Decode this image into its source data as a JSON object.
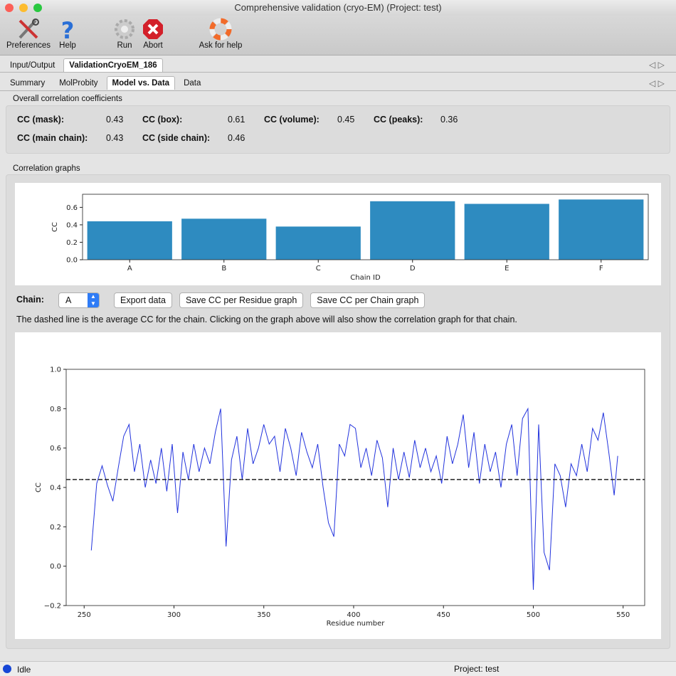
{
  "window": {
    "title": "Comprehensive validation (cryo-EM) (Project: test)"
  },
  "toolbar": [
    "Preferences",
    "Help",
    "Run",
    "Abort",
    "Ask for help"
  ],
  "main_tabs": {
    "items": [
      "Input/Output",
      "ValidationCryoEM_186"
    ],
    "active": 1
  },
  "sub_tabs": {
    "items": [
      "Summary",
      "MolProbity",
      "Model vs. Data",
      "Data"
    ],
    "active": 2
  },
  "overall": {
    "heading": "Overall correlation coefficients",
    "items": [
      {
        "label": "CC (mask):",
        "value": 0.43
      },
      {
        "label": "CC (box):",
        "value": 0.61
      },
      {
        "label": "CC (volume):",
        "value": 0.45
      },
      {
        "label": "CC (peaks):",
        "value": 0.36
      },
      {
        "label": "CC (main chain):",
        "value": 0.43
      },
      {
        "label": "CC (side chain):",
        "value": 0.46
      }
    ]
  },
  "graphs_heading": "Correlation graphs",
  "chain": {
    "label": "Chain:",
    "value": "A"
  },
  "buttons": [
    "Export data",
    "Save CC per Residue graph",
    "Save CC per Chain graph"
  ],
  "note": "The dashed line is the average CC for the chain. Clicking on the graph above will also show the correlation graph for that chain.",
  "status": {
    "state": "Idle",
    "project": "Project: test"
  },
  "chart_data": [
    {
      "type": "bar",
      "xlabel": "Chain ID",
      "ylabel": "CC",
      "categories": [
        "A",
        "B",
        "C",
        "D",
        "E",
        "F"
      ],
      "values": [
        0.44,
        0.47,
        0.38,
        0.67,
        0.64,
        0.69
      ],
      "color": "#2e8bc0",
      "ylim": [
        0,
        0.75
      ],
      "yticks": [
        {
          "value": 0,
          "label": "0.0"
        },
        0.2,
        0.4,
        0.6
      ]
    },
    {
      "type": "line",
      "xlabel": "Residue number",
      "ylabel": "CC",
      "color": "#2233dd",
      "average": 0.44,
      "xlim": [
        240,
        562
      ],
      "xticks": [
        250,
        300,
        350,
        400,
        450,
        500,
        550
      ],
      "ylim": [
        -0.2,
        1.0
      ],
      "yticks": [
        {
          "value": -0.2,
          "label": "−0.2"
        },
        {
          "value": 0,
          "label": "0.0"
        },
        0.2,
        0.4,
        0.6,
        0.8,
        {
          "value": 1,
          "label": "1.0"
        }
      ],
      "x": [
        254,
        257,
        260,
        263,
        266,
        269,
        272,
        275,
        278,
        281,
        284,
        287,
        290,
        293,
        296,
        299,
        302,
        305,
        308,
        311,
        314,
        317,
        320,
        323,
        326,
        329,
        332,
        335,
        338,
        341,
        344,
        347,
        350,
        353,
        356,
        359,
        362,
        365,
        368,
        371,
        374,
        377,
        380,
        383,
        386,
        389,
        392,
        395,
        398,
        401,
        404,
        407,
        410,
        413,
        416,
        419,
        422,
        425,
        428,
        431,
        434,
        437,
        440,
        443,
        446,
        449,
        452,
        455,
        458,
        461,
        464,
        467,
        470,
        473,
        476,
        479,
        482,
        485,
        488,
        491,
        494,
        497,
        500,
        503,
        506,
        509,
        512,
        515,
        518,
        521,
        524,
        527,
        530,
        533,
        536,
        539,
        542,
        545,
        547
      ],
      "values": [
        0.08,
        0.42,
        0.51,
        0.41,
        0.33,
        0.5,
        0.66,
        0.72,
        0.48,
        0.62,
        0.4,
        0.54,
        0.42,
        0.6,
        0.38,
        0.62,
        0.27,
        0.58,
        0.44,
        0.62,
        0.48,
        0.6,
        0.52,
        0.68,
        0.8,
        0.1,
        0.54,
        0.66,
        0.44,
        0.7,
        0.52,
        0.6,
        0.72,
        0.62,
        0.66,
        0.48,
        0.7,
        0.6,
        0.46,
        0.68,
        0.58,
        0.5,
        0.62,
        0.4,
        0.22,
        0.15,
        0.62,
        0.56,
        0.72,
        0.7,
        0.5,
        0.6,
        0.46,
        0.64,
        0.55,
        0.3,
        0.6,
        0.44,
        0.58,
        0.45,
        0.64,
        0.5,
        0.6,
        0.48,
        0.56,
        0.42,
        0.66,
        0.52,
        0.62,
        0.77,
        0.5,
        0.68,
        0.42,
        0.62,
        0.48,
        0.58,
        0.4,
        0.62,
        0.72,
        0.46,
        0.75,
        0.8,
        -0.12,
        0.72,
        0.07,
        -0.02,
        0.52,
        0.46,
        0.3,
        0.52,
        0.46,
        0.62,
        0.48,
        0.7,
        0.64,
        0.78,
        0.58,
        0.36,
        0.56
      ]
    }
  ]
}
